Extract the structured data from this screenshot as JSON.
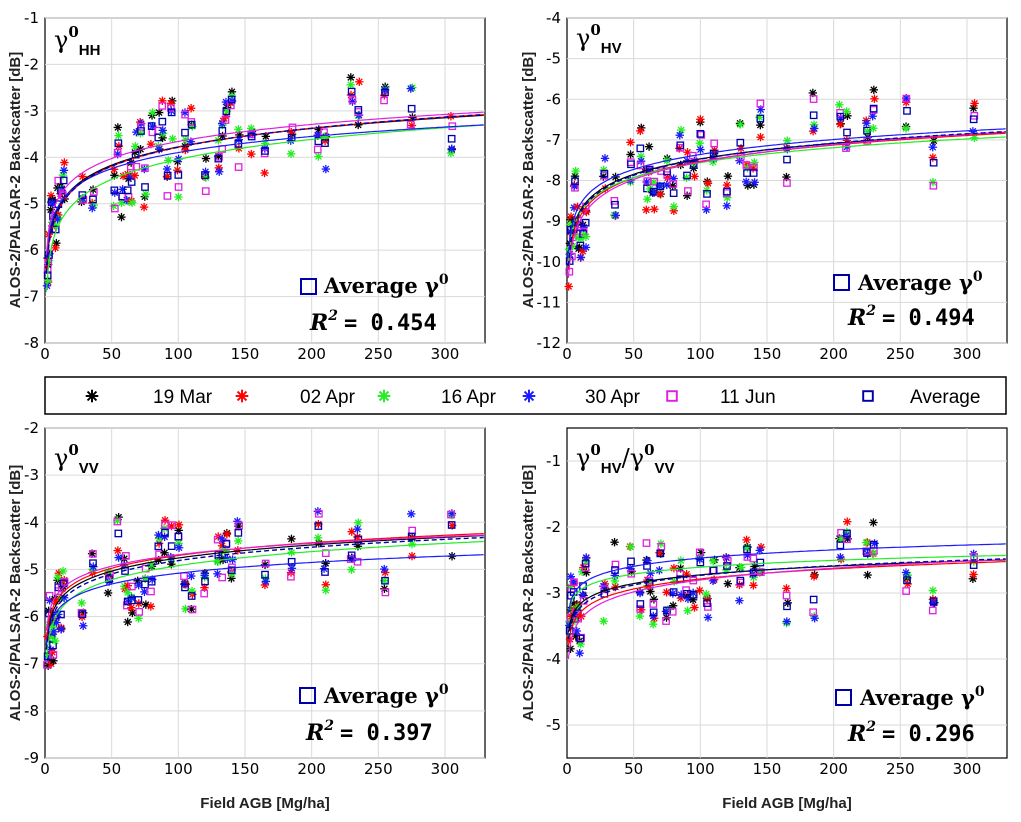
{
  "colors": {
    "19 Mar": "#000000",
    "02 Apr": "#ff0000",
    "16 Apr": "#22ee22",
    "30 Apr": "#1a1aff",
    "11 Jun": "#e020e0",
    "Average": "#0000aa"
  },
  "legend": {
    "entries": [
      {
        "label": "19 Mar",
        "marker": "asterisk"
      },
      {
        "label": "02 Apr",
        "marker": "asterisk"
      },
      {
        "label": "16 Apr",
        "marker": "asterisk"
      },
      {
        "label": "30 Apr",
        "marker": "asterisk"
      },
      {
        "label": "11 Jun",
        "marker": "square"
      },
      {
        "label": "Average",
        "marker": "square"
      }
    ]
  },
  "chart_data": [
    {
      "type": "scatter",
      "panel": "HH",
      "symbol": "γ",
      "superscript": "0",
      "subscript": "HH",
      "xlabel": "",
      "ylabel": "ALOS-2/PALSAR-2 Backscatter [dB]",
      "xlim": [
        0,
        330
      ],
      "ylim": [
        -8,
        -1
      ],
      "xticks": [
        0,
        50,
        100,
        150,
        200,
        250,
        300
      ],
      "yticks": [
        -8,
        -7,
        -6,
        -5,
        -4,
        -3,
        -2,
        -1
      ],
      "avg_label": "Average γ",
      "avg_sup": "0",
      "r2_prefix": "R",
      "r2_sup": "2",
      "r2_value": "= 0.454",
      "x": [
        2,
        3,
        5,
        6,
        8,
        10,
        12,
        14,
        28,
        36,
        52,
        55,
        58,
        62,
        65,
        68,
        72,
        75,
        80,
        85,
        88,
        92,
        95,
        100,
        105,
        110,
        120,
        130,
        133,
        136,
        140,
        145,
        155,
        165,
        185,
        205,
        210,
        230,
        235,
        255,
        275,
        305
      ],
      "fits": {
        "19 Mar": [
          -6.4,
          0.57
        ],
        "02 Apr": [
          -6.5,
          0.59
        ],
        "16 Apr": [
          -6.9,
          0.62
        ],
        "30 Apr": [
          -6.2,
          0.5
        ],
        "11 Jun": [
          -6.1,
          0.53
        ],
        "Average": [
          -6.5,
          0.59
        ]
      }
    },
    {
      "type": "scatter",
      "panel": "HV",
      "symbol": "γ",
      "superscript": "0",
      "subscript": "HV",
      "xlabel": "",
      "ylabel": "ALOS-2/PALSAR-2 Backscatter [dB]",
      "xlim": [
        0,
        330
      ],
      "ylim": [
        -12,
        -4
      ],
      "xticks": [
        0,
        50,
        100,
        150,
        200,
        250,
        300
      ],
      "yticks": [
        -12,
        -11,
        -10,
        -9,
        -8,
        -7,
        -6,
        -5,
        -4
      ],
      "avg_label": "Average γ",
      "avg_sup": "0",
      "r2_prefix": "R",
      "r2_sup": "2",
      "r2_value": "= 0.494",
      "x": [
        2,
        3,
        5,
        6,
        8,
        10,
        12,
        14,
        28,
        36,
        48,
        55,
        60,
        62,
        65,
        70,
        75,
        80,
        85,
        90,
        95,
        100,
        105,
        110,
        120,
        130,
        135,
        140,
        145,
        165,
        185,
        205,
        210,
        225,
        230,
        255,
        275,
        305
      ],
      "fits": {
        "19 Mar": [
          -10.0,
          0.55
        ],
        "02 Apr": [
          -10.2,
          0.58
        ],
        "16 Apr": [
          -10.0,
          0.53
        ],
        "30 Apr": [
          -9.8,
          0.53
        ],
        "11 Jun": [
          -10.4,
          0.62
        ],
        "Average": [
          -10.1,
          0.57
        ]
      }
    },
    {
      "type": "scatter",
      "panel": "VV",
      "symbol": "γ",
      "superscript": "0",
      "subscript": "VV",
      "xlabel": "Field AGB [Mg/ha]",
      "ylabel": "ALOS-2/PALSAR-2 Backscatter [dB]",
      "xlim": [
        0,
        330
      ],
      "ylim": [
        -9,
        -2
      ],
      "xticks": [
        0,
        50,
        100,
        150,
        200,
        250,
        300
      ],
      "yticks": [
        -9,
        -8,
        -7,
        -6,
        -5,
        -4,
        -3,
        -2
      ],
      "avg_label": "Average γ",
      "avg_sup": "0",
      "r2_prefix": "R",
      "r2_sup": "2",
      "r2_value": "= 0.397",
      "x": [
        2,
        3,
        5,
        6,
        8,
        10,
        12,
        14,
        28,
        36,
        48,
        55,
        60,
        62,
        65,
        70,
        75,
        80,
        85,
        90,
        95,
        100,
        105,
        110,
        120,
        130,
        133,
        136,
        140,
        145,
        165,
        185,
        205,
        210,
        230,
        235,
        255,
        275,
        305
      ],
      "fits": {
        "19 Mar": [
          -6.6,
          0.4
        ],
        "02 Apr": [
          -6.5,
          0.39
        ],
        "16 Apr": [
          -6.9,
          0.43
        ],
        "30 Apr": [
          -6.6,
          0.33
        ],
        "11 Jun": [
          -6.3,
          0.35
        ],
        "Average": [
          -6.7,
          0.41
        ]
      }
    },
    {
      "type": "scatter",
      "panel": "HV/VV",
      "symbol": "γ",
      "superscript": "0",
      "subscript": "HV",
      "ratio_symbol": "/γ",
      "ratio_superscript": "0",
      "ratio_subscript": "VV",
      "xlabel": "Field AGB [Mg/ha]",
      "ylabel": "ALOS-2/PALSAR-2 Backscatter [dB]",
      "xlim": [
        0,
        330
      ],
      "ylim": [
        -5.5,
        -0.5
      ],
      "xticks": [
        0,
        50,
        100,
        150,
        200,
        250,
        300
      ],
      "yticks": [
        -5,
        -4,
        -3,
        -2,
        -1
      ],
      "avg_label": "Average γ",
      "avg_sup": "0",
      "r2_prefix": "R",
      "r2_sup": "2",
      "r2_value": "= 0.296",
      "x": [
        2,
        3,
        5,
        6,
        8,
        10,
        12,
        14,
        28,
        36,
        48,
        55,
        60,
        62,
        65,
        70,
        75,
        80,
        85,
        90,
        95,
        100,
        105,
        110,
        120,
        130,
        135,
        140,
        145,
        165,
        185,
        205,
        210,
        225,
        230,
        255,
        275,
        305
      ],
      "fits": {
        "19 Mar": [
          -3.6,
          0.19
        ],
        "02 Apr": [
          -3.8,
          0.22
        ],
        "16 Apr": [
          -3.3,
          0.15
        ],
        "30 Apr": [
          -3.3,
          0.18
        ],
        "11 Jun": [
          -4.0,
          0.26
        ],
        "Average": [
          -3.7,
          0.21
        ]
      }
    }
  ]
}
